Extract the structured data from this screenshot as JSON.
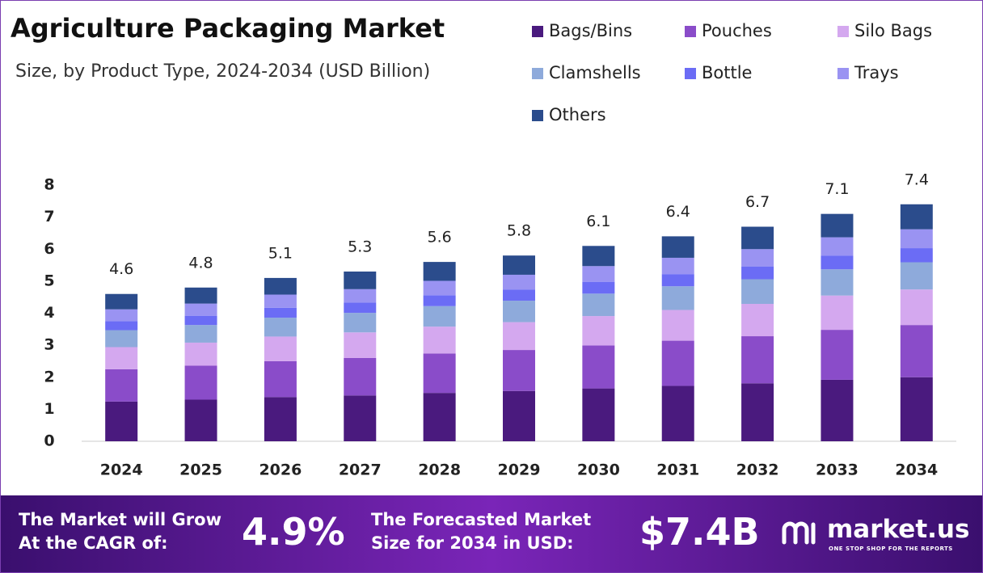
{
  "chart_data": {
    "type": "stacked_bar",
    "title": "Agriculture Packaging Market",
    "subtitle": "Size, by Product Type, 2024-2034 (USD Billion)",
    "categories": [
      "2024",
      "2025",
      "2026",
      "2027",
      "2028",
      "2029",
      "2030",
      "2031",
      "2032",
      "2033",
      "2034"
    ],
    "series": [
      {
        "name": "Bags/Bins",
        "color": "#4a1a7e",
        "values": [
          1.24,
          1.3,
          1.38,
          1.43,
          1.51,
          1.57,
          1.65,
          1.73,
          1.81,
          1.92,
          2.0
        ]
      },
      {
        "name": "Pouches",
        "color": "#8a4cc9",
        "values": [
          1.01,
          1.06,
          1.12,
          1.17,
          1.23,
          1.28,
          1.34,
          1.41,
          1.47,
          1.56,
          1.63
        ]
      },
      {
        "name": "Silo Bags",
        "color": "#d4a8ef",
        "values": [
          0.69,
          0.72,
          0.77,
          0.8,
          0.84,
          0.87,
          0.92,
          0.96,
          1.01,
          1.07,
          1.11
        ]
      },
      {
        "name": "Clamshells",
        "color": "#8eaadb",
        "values": [
          0.53,
          0.55,
          0.59,
          0.61,
          0.64,
          0.67,
          0.7,
          0.74,
          0.77,
          0.82,
          0.85
        ]
      },
      {
        "name": "Bottle",
        "color": "#6b6cf5",
        "values": [
          0.28,
          0.29,
          0.31,
          0.32,
          0.34,
          0.35,
          0.37,
          0.38,
          0.4,
          0.43,
          0.44
        ]
      },
      {
        "name": "Trays",
        "color": "#9a93f2",
        "values": [
          0.37,
          0.38,
          0.41,
          0.42,
          0.45,
          0.46,
          0.49,
          0.51,
          0.54,
          0.57,
          0.59
        ]
      },
      {
        "name": "Others",
        "color": "#2b4c8c",
        "values": [
          0.48,
          0.5,
          0.52,
          0.55,
          0.59,
          0.6,
          0.63,
          0.67,
          0.7,
          0.73,
          0.78
        ]
      }
    ],
    "totals": [
      4.6,
      4.8,
      5.1,
      5.3,
      5.6,
      5.8,
      6.1,
      6.4,
      6.7,
      7.1,
      7.4
    ],
    "ylim": [
      0,
      8
    ],
    "yticks": [
      0,
      1,
      2,
      3,
      4,
      5,
      6,
      7,
      8
    ],
    "grid": false,
    "legend": "top-right"
  },
  "footer": {
    "cagr_text": [
      "The Market will Grow",
      "At the CAGR of:"
    ],
    "cagr_value": "4.9%",
    "size_text": [
      "The Forecasted Market",
      "Size for 2034 in USD:"
    ],
    "size_value": "$7.4B",
    "logo": "market.us",
    "tagline": "ONE STOP SHOP FOR THE REPORTS"
  }
}
